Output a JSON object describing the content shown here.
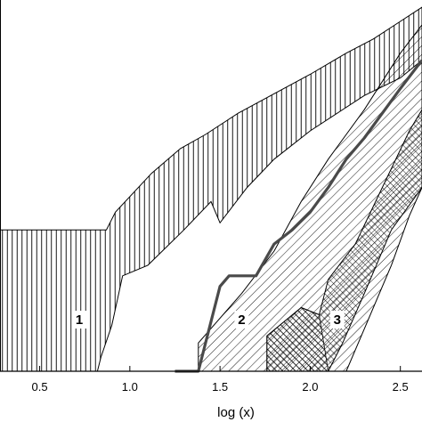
{
  "chart_data": {
    "type": "area",
    "xlabel": "log (x)",
    "xlim": [
      0.28,
      2.62
    ],
    "x_ticks": [
      "0.5",
      "1.0",
      "1.5",
      "2.0",
      "2.5"
    ],
    "x_tick_values": [
      0.5,
      1.0,
      1.5,
      2.0,
      2.5
    ],
    "region_labels": [
      {
        "text": "1",
        "x": 0.72
      },
      {
        "text": "2",
        "x": 1.62
      },
      {
        "text": "3",
        "x": 2.15
      }
    ],
    "regions": [
      {
        "id": "1",
        "fill": "vertical-hatch",
        "upper": [
          [
            0.28,
            0.4
          ],
          [
            0.87,
            0.4
          ],
          [
            0.92,
            0.45
          ],
          [
            1.12,
            0.56
          ],
          [
            1.28,
            0.63
          ],
          [
            1.42,
            0.67
          ],
          [
            1.6,
            0.73
          ],
          [
            2.0,
            0.84
          ],
          [
            2.2,
            0.9
          ],
          [
            2.35,
            0.94
          ],
          [
            2.5,
            0.99
          ],
          [
            2.62,
            1.03
          ]
        ],
        "lower": [
          [
            0.28,
            0.0
          ],
          [
            0.82,
            0.0
          ],
          [
            0.84,
            0.04
          ],
          [
            0.9,
            0.13
          ],
          [
            0.96,
            0.27
          ],
          [
            1.1,
            0.3
          ],
          [
            1.3,
            0.4
          ],
          [
            1.45,
            0.48
          ],
          [
            1.5,
            0.42
          ],
          [
            1.65,
            0.52
          ],
          [
            1.8,
            0.6
          ],
          [
            2.0,
            0.68
          ],
          [
            2.3,
            0.78
          ],
          [
            2.5,
            0.83
          ],
          [
            2.62,
            0.88
          ]
        ]
      },
      {
        "id": "2",
        "fill": "diagonal-hatch",
        "upper": [
          [
            1.38,
            0.08
          ],
          [
            1.62,
            0.22
          ],
          [
            1.8,
            0.34
          ],
          [
            1.95,
            0.48
          ],
          [
            2.1,
            0.6
          ],
          [
            2.3,
            0.74
          ],
          [
            2.5,
            0.9
          ],
          [
            2.62,
            0.98
          ]
        ],
        "lower": [
          [
            1.38,
            0.0
          ],
          [
            2.2,
            0.0
          ],
          [
            2.3,
            0.12
          ],
          [
            2.45,
            0.3
          ],
          [
            2.55,
            0.44
          ],
          [
            2.62,
            0.52
          ]
        ]
      },
      {
        "id": "3",
        "fill": "cross-hatch",
        "upper": [
          [
            1.76,
            0.1
          ],
          [
            1.95,
            0.18
          ],
          [
            2.05,
            0.16
          ],
          [
            2.1,
            0.26
          ],
          [
            2.25,
            0.36
          ],
          [
            2.4,
            0.52
          ],
          [
            2.55,
            0.68
          ],
          [
            2.62,
            0.74
          ]
        ],
        "lower": [
          [
            1.76,
            0.0
          ],
          [
            2.1,
            0.0
          ],
          [
            2.18,
            0.08
          ],
          [
            2.3,
            0.22
          ],
          [
            2.45,
            0.4
          ],
          [
            2.62,
            0.52
          ]
        ]
      }
    ],
    "series": [
      {
        "line": "thick-gray",
        "x": [
          1.25,
          1.38,
          1.43,
          1.5,
          1.55,
          1.7,
          1.8,
          1.9,
          2.0,
          2.1,
          2.2,
          2.3,
          2.4,
          2.5,
          2.62
        ],
        "y": [
          0.0,
          0.0,
          0.1,
          0.24,
          0.27,
          0.27,
          0.36,
          0.4,
          0.45,
          0.52,
          0.6,
          0.66,
          0.73,
          0.8,
          0.88
        ]
      }
    ],
    "grid": false
  }
}
